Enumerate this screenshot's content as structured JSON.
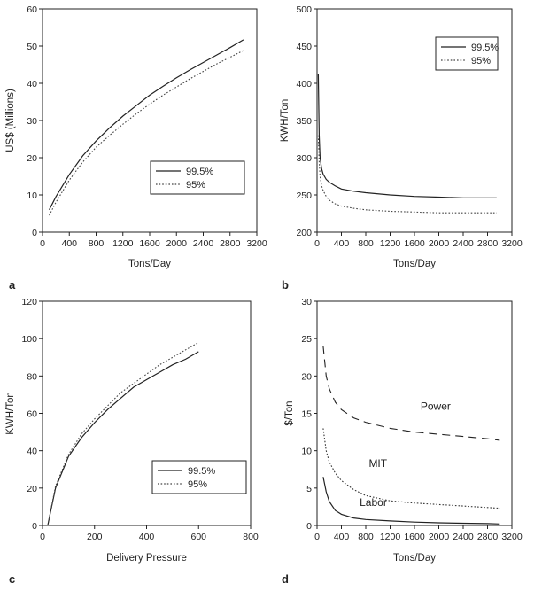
{
  "chart_data": [
    {
      "panel": "a",
      "type": "line",
      "xlabel": "Tons/Day",
      "ylabel": "US$ (Millions)",
      "xlim": [
        0,
        3200
      ],
      "ylim": [
        0,
        60
      ],
      "xticks": [
        0,
        400,
        800,
        1200,
        1600,
        2000,
        2400,
        2800,
        3200
      ],
      "yticks": [
        0,
        10,
        20,
        30,
        40,
        50,
        60
      ],
      "legend": "center-right",
      "series": [
        {
          "name": "99.5%",
          "style": "solid",
          "color": "#222222",
          "x": [
            100,
            200,
            400,
            600,
            800,
            1000,
            1200,
            1400,
            1600,
            1800,
            2000,
            2200,
            2400,
            2600,
            2800,
            3000
          ],
          "y": [
            6,
            9.5,
            15.5,
            20.5,
            24.5,
            28,
            31.2,
            34,
            36.8,
            39.2,
            41.5,
            43.6,
            45.6,
            47.6,
            49.6,
            51.7
          ]
        },
        {
          "name": "95%",
          "style": "dotted",
          "color": "#444444",
          "x": [
            100,
            200,
            400,
            600,
            800,
            1000,
            1200,
            1400,
            1600,
            1800,
            2000,
            2200,
            2400,
            2600,
            2800,
            3000
          ],
          "y": [
            4.5,
            8,
            14,
            18.8,
            22.8,
            26,
            29,
            31.8,
            34.4,
            36.8,
            39,
            41.2,
            43.2,
            45.2,
            47,
            48.8
          ]
        }
      ]
    },
    {
      "panel": "b",
      "type": "line",
      "xlabel": "Tons/Day",
      "ylabel": "KWH/Ton",
      "xlim": [
        0,
        3200
      ],
      "ylim": [
        200,
        500
      ],
      "xticks": [
        0,
        400,
        800,
        1200,
        1600,
        2000,
        2400,
        2800,
        3200
      ],
      "yticks": [
        200,
        250,
        300,
        350,
        400,
        450,
        500
      ],
      "legend": "top-right",
      "series": [
        {
          "name": "99.5%",
          "style": "solid",
          "color": "#222222",
          "x": [
            20,
            35,
            50,
            75,
            100,
            150,
            200,
            300,
            400,
            600,
            800,
            1200,
            1600,
            2000,
            2400,
            2800,
            2950
          ],
          "y": [
            412,
            330,
            300,
            285,
            278,
            271,
            267,
            262,
            258,
            255,
            253,
            250,
            248,
            247,
            246,
            246,
            246
          ]
        },
        {
          "name": "95%",
          "style": "dotted",
          "color": "#444444",
          "x": [
            20,
            35,
            50,
            75,
            100,
            150,
            200,
            300,
            400,
            600,
            800,
            1200,
            1600,
            2000,
            2400,
            2800,
            2950
          ],
          "y": [
            330,
            295,
            275,
            262,
            256,
            248,
            243,
            238,
            235,
            232,
            230,
            228,
            227,
            226,
            226,
            226,
            226
          ]
        }
      ]
    },
    {
      "panel": "c",
      "type": "line",
      "xlabel": "Delivery Pressure",
      "ylabel": "KWH/Ton",
      "xlim": [
        0,
        800
      ],
      "ylim": [
        0,
        120
      ],
      "xticks": [
        0,
        200,
        400,
        600,
        800
      ],
      "yticks": [
        0,
        20,
        40,
        60,
        80,
        100,
        120
      ],
      "legend": "bottom-right",
      "series": [
        {
          "name": "99.5%",
          "style": "solid",
          "color": "#222222",
          "x": [
            20,
            50,
            100,
            150,
            200,
            250,
            300,
            350,
            400,
            450,
            500,
            550,
            600
          ],
          "y": [
            0,
            20,
            37,
            47,
            55,
            62,
            68,
            74,
            78,
            82,
            86,
            89,
            93
          ]
        },
        {
          "name": "95%",
          "style": "dotted",
          "color": "#444444",
          "x": [
            20,
            50,
            100,
            150,
            200,
            250,
            300,
            350,
            400,
            450,
            500,
            550,
            600
          ],
          "y": [
            0,
            21,
            38,
            49,
            57,
            64,
            71,
            76,
            81,
            86,
            90,
            94,
            98
          ]
        }
      ]
    },
    {
      "panel": "d",
      "type": "line",
      "xlabel": "Tons/Day",
      "ylabel": "$/Ton",
      "xlim": [
        0,
        3200
      ],
      "ylim": [
        0,
        30
      ],
      "xticks": [
        0,
        400,
        800,
        1200,
        1600,
        2000,
        2400,
        2800,
        3200
      ],
      "yticks": [
        0,
        5,
        10,
        15,
        20,
        25,
        30
      ],
      "legend": "none",
      "series": [
        {
          "name": "Power",
          "style": "dashed",
          "color": "#222222",
          "x": [
            100,
            150,
            200,
            300,
            400,
            600,
            800,
            1200,
            1600,
            2000,
            2400,
            2800,
            3000
          ],
          "y": [
            24,
            20,
            18.3,
            16.5,
            15.5,
            14.4,
            13.8,
            13,
            12.5,
            12.2,
            11.9,
            11.6,
            11.4
          ]
        },
        {
          "name": "MIT",
          "style": "dotted",
          "color": "#333333",
          "x": [
            100,
            150,
            200,
            300,
            400,
            600,
            800,
            1200,
            1600,
            2000,
            2400,
            2800,
            3000
          ],
          "y": [
            13,
            10,
            8.5,
            7,
            6,
            4.8,
            4,
            3.3,
            3,
            2.8,
            2.6,
            2.4,
            2.3
          ]
        },
        {
          "name": "Labor",
          "style": "solid",
          "color": "#222222",
          "x": [
            100,
            150,
            200,
            300,
            400,
            600,
            800,
            1200,
            1600,
            2000,
            2400,
            2800,
            3000
          ],
          "y": [
            6.5,
            4.5,
            3.2,
            2,
            1.5,
            1,
            0.8,
            0.6,
            0.45,
            0.35,
            0.3,
            0.25,
            0.2
          ]
        }
      ],
      "annotations": [
        {
          "text": "Power",
          "x": 1700,
          "y": 15.5
        },
        {
          "text": "MIT",
          "x": 850,
          "y": 7.8
        },
        {
          "text": "Labor",
          "x": 700,
          "y": 2.6
        }
      ]
    }
  ]
}
